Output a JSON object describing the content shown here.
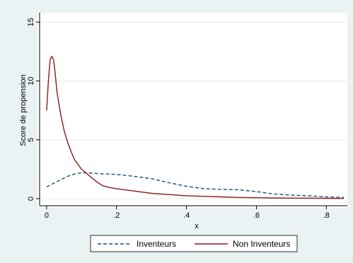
{
  "chart_data": {
    "type": "line",
    "title": "",
    "xlabel": "x",
    "ylabel": "Score de propension",
    "xlim": [
      -0.02,
      0.86
    ],
    "ylim": [
      -0.6,
      15.8
    ],
    "x_ticks": [
      0,
      0.2,
      0.4,
      0.6,
      0.8
    ],
    "x_tick_labels": [
      "0",
      ".2",
      ".4",
      ".6",
      ".8"
    ],
    "y_ticks": [
      0,
      5,
      10,
      15
    ],
    "y_tick_labels": [
      "0",
      "5",
      "10",
      "15"
    ],
    "grid": "horizontal",
    "legend_position": "bottom",
    "series": [
      {
        "name": "Inventeurs",
        "color": "#1f4e79",
        "dash": "dashed",
        "x": [
          0.0,
          0.02,
          0.04,
          0.06,
          0.08,
          0.1,
          0.12,
          0.14,
          0.16,
          0.18,
          0.2,
          0.22,
          0.25,
          0.3,
          0.35,
          0.4,
          0.45,
          0.5,
          0.55,
          0.6,
          0.65,
          0.7,
          0.75,
          0.8,
          0.85
        ],
        "y": [
          1.0,
          1.3,
          1.6,
          1.9,
          2.1,
          2.2,
          2.2,
          2.15,
          2.1,
          2.1,
          2.05,
          2.0,
          1.9,
          1.7,
          1.35,
          1.05,
          0.85,
          0.8,
          0.75,
          0.6,
          0.4,
          0.3,
          0.25,
          0.15,
          0.1
        ]
      },
      {
        "name": "Non Inventeurs",
        "color": "#8b1a1a",
        "dash": "solid",
        "x": [
          0.0,
          0.005,
          0.01,
          0.015,
          0.02,
          0.025,
          0.03,
          0.04,
          0.05,
          0.06,
          0.07,
          0.08,
          0.1,
          0.12,
          0.14,
          0.16,
          0.18,
          0.2,
          0.25,
          0.3,
          0.35,
          0.4,
          0.45,
          0.5,
          0.55,
          0.6,
          0.65,
          0.7,
          0.75,
          0.8,
          0.85
        ],
        "y": [
          7.5,
          10.0,
          11.8,
          12.1,
          11.8,
          10.5,
          9.0,
          7.2,
          5.8,
          4.8,
          4.0,
          3.3,
          2.5,
          2.0,
          1.5,
          1.1,
          0.95,
          0.85,
          0.65,
          0.45,
          0.35,
          0.25,
          0.2,
          0.15,
          0.1,
          0.08,
          0.06,
          0.05,
          0.04,
          0.03,
          0.02
        ]
      }
    ]
  }
}
